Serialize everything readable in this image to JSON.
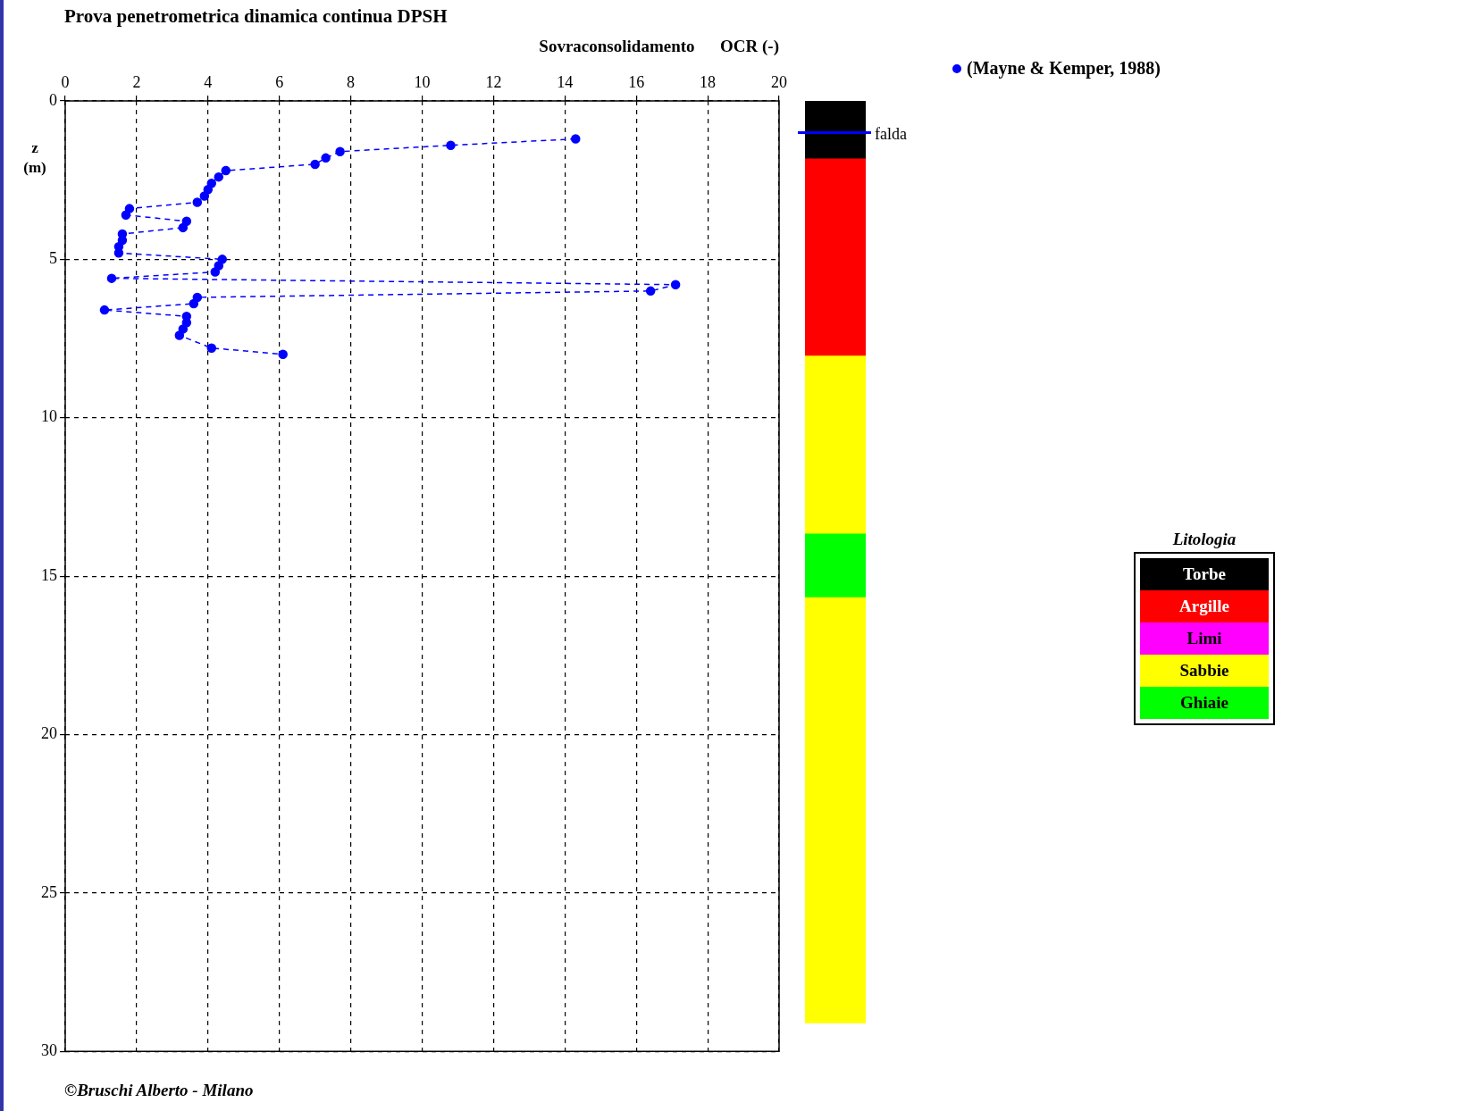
{
  "chart_data": [
    {
      "type": "line",
      "title": "Prova penetrometrica dinamica continua  DPSH",
      "xlabel": "Sovraconsolidamento      OCR (-)",
      "ylabel": "z (m)",
      "xlim": [
        0,
        20
      ],
      "xticks": [
        0,
        2,
        4,
        6,
        8,
        10,
        12,
        14,
        16,
        18,
        20
      ],
      "ylim": [
        30,
        0
      ],
      "yticks": [
        0,
        5,
        10,
        15,
        20,
        25,
        30
      ],
      "grid": true,
      "legend": "top right",
      "marker": "circle",
      "line_style": "dashed",
      "series": [
        {
          "name": "(Mayne & Kemper, 1988)",
          "color": "#0000ff",
          "type": "line",
          "x": [
            14.3,
            10.8,
            7.7,
            7.3,
            7.0,
            4.5,
            4.3,
            4.1,
            4.0,
            3.9,
            3.7,
            1.8,
            1.7,
            3.4,
            3.3,
            1.6,
            1.6,
            1.5,
            1.5,
            4.4,
            4.3,
            4.2,
            1.3,
            17.1,
            16.4,
            3.7,
            3.6,
            1.1,
            3.4,
            3.4,
            3.3,
            3.2,
            4.1,
            6.1
          ],
          "values": [
            1.2,
            1.4,
            1.6,
            1.8,
            2.0,
            2.2,
            2.4,
            2.6,
            2.8,
            3.0,
            3.2,
            3.4,
            3.6,
            3.8,
            4.0,
            4.2,
            4.4,
            4.6,
            4.8,
            5.0,
            5.2,
            5.4,
            5.6,
            5.8,
            6.0,
            6.2,
            6.4,
            6.6,
            6.8,
            7.0,
            7.2,
            7.4,
            7.8,
            8.0
          ]
        }
      ],
      "annotations": [
        "©Bruschi Alberto - Milano"
      ]
    },
    {
      "type": "bar",
      "stacked": true,
      "categories": [
        null
      ],
      "ylim": [
        30,
        0
      ],
      "tick_labels": false,
      "legend": "right",
      "legend_title": "Litologia",
      "ref_lines": [
        {
          "axis": "y",
          "value": 1.0,
          "label": "falda",
          "color": "#0000ff"
        }
      ],
      "series": [
        {
          "name": "Torbe",
          "color": "#000000",
          "values": [
            1.8
          ]
        },
        {
          "name": "Argille",
          "color": "#ff0000",
          "values": [
            6.2
          ]
        },
        {
          "name": "Limi",
          "color": "#ff00ff",
          "values": [
            null
          ]
        },
        {
          "name": "Sabbie",
          "color": "#ffff00",
          "values": [
            5.6
          ]
        },
        {
          "name": "Ghiaie",
          "color": "#00ff00",
          "values": [
            2.0
          ]
        },
        {
          "color": "#ffff00",
          "values": [
            13.4
          ]
        }
      ]
    }
  ]
}
